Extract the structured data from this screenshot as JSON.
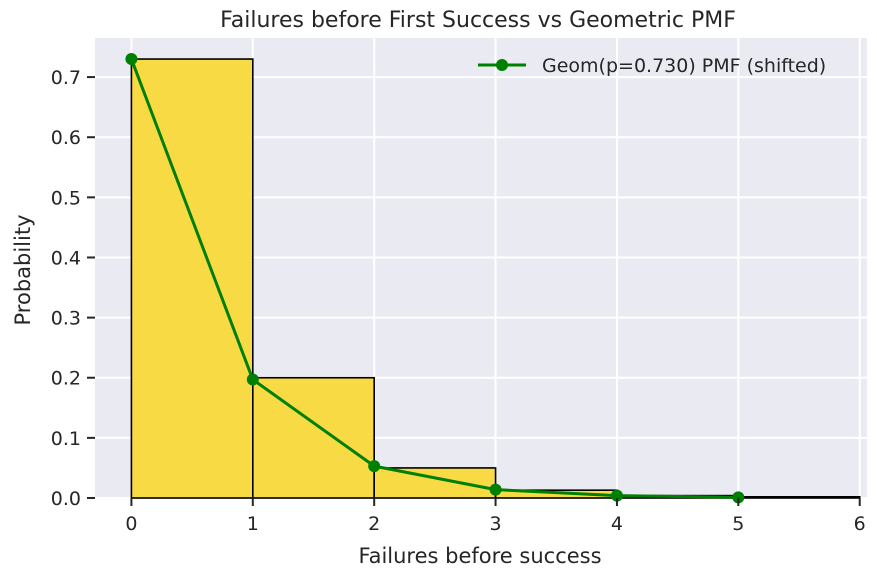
{
  "chart_data": {
    "type": "bar",
    "title": "Failures before First Success vs Geometric PMF",
    "xlabel": "Failures before success",
    "ylabel": "Probability",
    "xlim": [
      -0.3,
      6.06
    ],
    "ylim": [
      0,
      0.765
    ],
    "xticks": [
      0,
      1,
      2,
      3,
      4,
      5,
      6
    ],
    "yticks": [
      0.0,
      0.1,
      0.2,
      0.3,
      0.4,
      0.5,
      0.6,
      0.7
    ],
    "ytick_labels": [
      "0.0",
      "0.1",
      "0.2",
      "0.3",
      "0.4",
      "0.5",
      "0.6",
      "0.7"
    ],
    "grid": true,
    "legend_position": "top-right",
    "histogram": {
      "bin_edges": [
        0,
        1,
        2,
        3,
        4,
        5,
        6
      ],
      "values": [
        0.73,
        0.2,
        0.05,
        0.013,
        0.004,
        0.002
      ],
      "color": "#f9d93a",
      "edge_color": "#000000"
    },
    "series": [
      {
        "name": "Geom(p=0.730) PMF (shifted)",
        "type": "line",
        "x": [
          0,
          1,
          2,
          3,
          4,
          5
        ],
        "y": [
          0.73,
          0.197,
          0.053,
          0.014,
          0.004,
          0.001
        ],
        "color": "#008000"
      }
    ],
    "colors": {
      "background": "#eaeaf2",
      "grid": "#ffffff"
    }
  }
}
